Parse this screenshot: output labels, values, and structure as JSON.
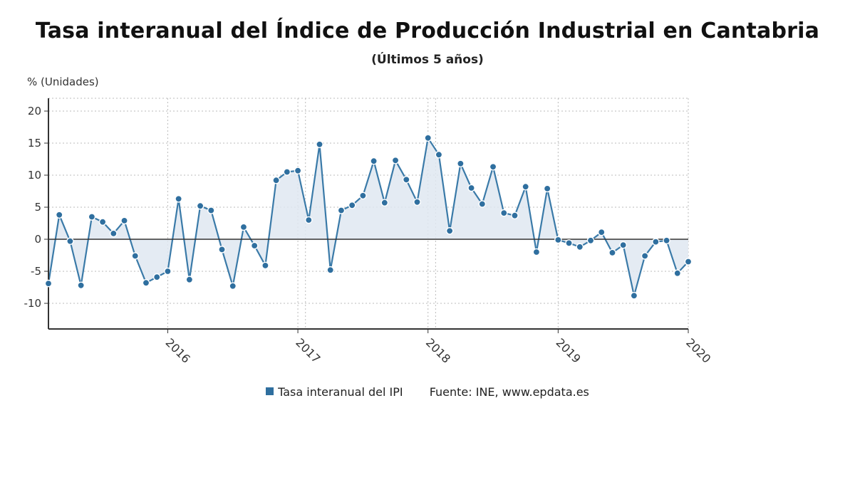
{
  "header": {
    "title": "Tasa interanual del Índice de Producción Industrial en Cantabria",
    "subtitle": "(Últimos 5 años)"
  },
  "legend": {
    "series_label": "Tasa interanual del IPI",
    "source": "Fuente: INE, www.epdata.es"
  },
  "colors": {
    "line": "#3a7aa8",
    "marker": "#2f6f9f",
    "marker_stroke": "#ffffff",
    "area": "#dfe8f1",
    "grid": "#bbbbbb",
    "axis": "#333333"
  },
  "chart_data": {
    "type": "line",
    "title": "Tasa interanual del Índice de Producción Industrial en Cantabria",
    "subtitle": "(Últimos 5 años)",
    "ylabel": "% (Unidades)",
    "xlabel": "",
    "ylim": [
      -14,
      22
    ],
    "yticks": [
      -10,
      -5,
      0,
      5,
      10,
      15,
      20
    ],
    "x_start": "2015-01",
    "x_end": "2020-01",
    "xticks": [
      {
        "label": "2016",
        "month_index": 11
      },
      {
        "label": "2017",
        "month_index": 23
      },
      {
        "label": "2018",
        "month_index": 35
      },
      {
        "label": "2019",
        "month_index": 47
      },
      {
        "label": "2020",
        "month_index": 59
      }
    ],
    "grid": true,
    "area_fill": true,
    "legend_position": "bottom",
    "series": [
      {
        "name": "Tasa interanual del IPI",
        "values": [
          -6.9,
          3.8,
          -0.3,
          -7.2,
          3.5,
          2.7,
          0.9,
          2.9,
          -2.6,
          -6.8,
          -5.9,
          -5.0,
          6.3,
          -6.3,
          5.2,
          4.5,
          -1.6,
          -7.3,
          1.9,
          -1.0,
          -4.1,
          9.2,
          10.5,
          10.7,
          3.0,
          14.8,
          -4.8,
          4.5,
          5.3,
          6.8,
          12.2,
          5.7,
          12.3,
          9.3,
          5.8,
          15.8,
          13.2,
          1.3,
          11.8,
          8.0,
          5.5,
          11.3,
          4.1,
          3.7,
          8.2,
          -2.0,
          7.9,
          -0.1,
          -0.6,
          -1.2,
          -0.2,
          1.1,
          -2.1,
          -0.9,
          -8.8,
          -2.6,
          -0.4,
          -0.2,
          -5.3,
          -3.5
        ]
      }
    ]
  }
}
